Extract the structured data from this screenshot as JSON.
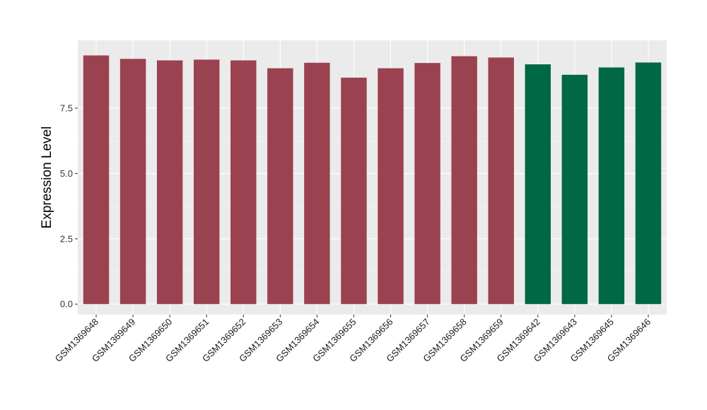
{
  "chart_data": {
    "type": "bar",
    "title": "",
    "xlabel": "",
    "ylabel": "Expression Level",
    "ylim": [
      -0.4,
      10.1
    ],
    "yticks": [
      0.0,
      2.5,
      5.0,
      7.5
    ],
    "ytick_labels": [
      "0.0",
      "2.5",
      "5.0",
      "7.5"
    ],
    "grid": true,
    "legend": "none",
    "categories": [
      "GSM1369648",
      "GSM1369649",
      "GSM1369650",
      "GSM1369651",
      "GSM1369652",
      "GSM1369653",
      "GSM1369654",
      "GSM1369655",
      "GSM1369656",
      "GSM1369657",
      "GSM1369658",
      "GSM1369659",
      "GSM1369642",
      "GSM1369643",
      "GSM1369645",
      "GSM1369646"
    ],
    "values": [
      9.52,
      9.39,
      9.33,
      9.36,
      9.33,
      9.03,
      9.24,
      8.67,
      9.03,
      9.23,
      9.49,
      9.44,
      9.18,
      8.78,
      9.06,
      9.25
    ],
    "colors": [
      "#9b4250",
      "#9b4250",
      "#9b4250",
      "#9b4250",
      "#9b4250",
      "#9b4250",
      "#9b4250",
      "#9b4250",
      "#9b4250",
      "#9b4250",
      "#9b4250",
      "#9b4250",
      "#016846",
      "#016846",
      "#016846",
      "#016846"
    ],
    "panel_background": "#ebebeb"
  }
}
